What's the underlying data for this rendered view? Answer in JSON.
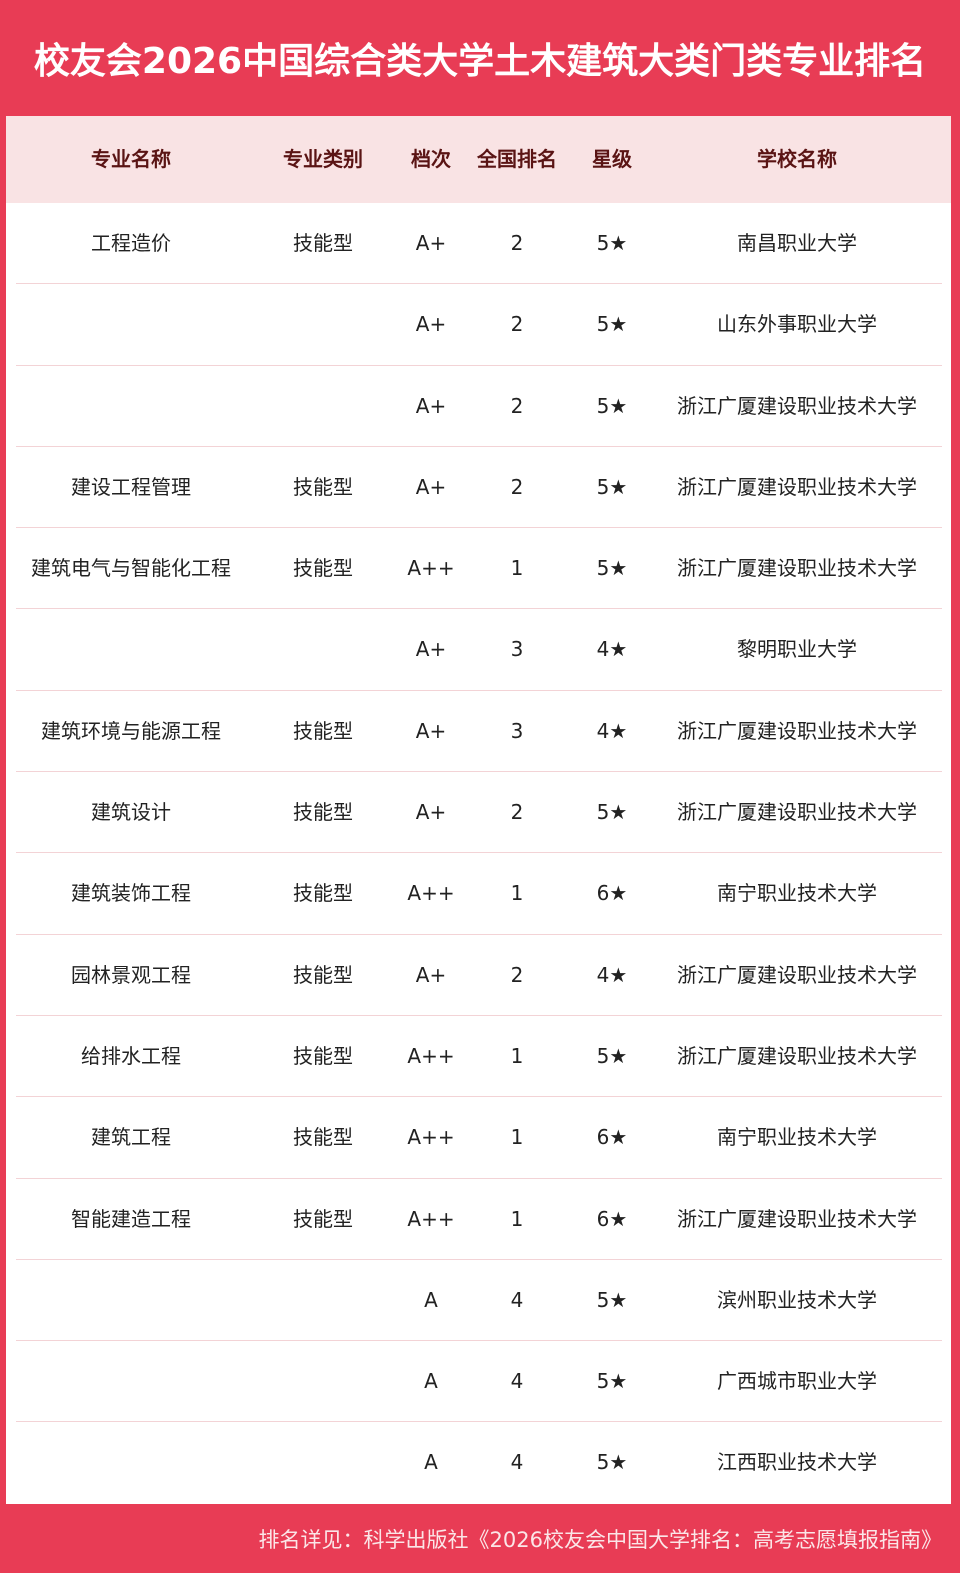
{
  "title": "校友会2026中国综合类大学土木建筑大类门类专业排名",
  "columns": [
    "专业名称",
    "专业类别",
    "档次",
    "全国排名",
    "星级",
    "学校名称"
  ],
  "rows": [
    [
      "工程造价",
      "技能型",
      "A+",
      "2",
      "5★",
      "南昌职业大学"
    ],
    [
      "",
      "",
      "A+",
      "2",
      "5★",
      "山东外事职业大学"
    ],
    [
      "",
      "",
      "A+",
      "2",
      "5★",
      "浙江广厦建设职业技术大学"
    ],
    [
      "建设工程管理",
      "技能型",
      "A+",
      "2",
      "5★",
      "浙江广厦建设职业技术大学"
    ],
    [
      "建筑电气与智能化工程",
      "技能型",
      "A++",
      "1",
      "5★",
      "浙江广厦建设职业技术大学"
    ],
    [
      "",
      "",
      "A+",
      "3",
      "4★",
      "黎明职业大学"
    ],
    [
      "建筑环境与能源工程",
      "技能型",
      "A+",
      "3",
      "4★",
      "浙江广厦建设职业技术大学"
    ],
    [
      "建筑设计",
      "技能型",
      "A+",
      "2",
      "5★",
      "浙江广厦建设职业技术大学"
    ],
    [
      "建筑装饰工程",
      "技能型",
      "A++",
      "1",
      "6★",
      "南宁职业技术大学"
    ],
    [
      "园林景观工程",
      "技能型",
      "A+",
      "2",
      "4★",
      "浙江广厦建设职业技术大学"
    ],
    [
      "给排水工程",
      "技能型",
      "A++",
      "1",
      "5★",
      "浙江广厦建设职业技术大学"
    ],
    [
      "建筑工程",
      "技能型",
      "A++",
      "1",
      "6★",
      "南宁职业技术大学"
    ],
    [
      "智能建造工程",
      "技能型",
      "A++",
      "1",
      "6★",
      "浙江广厦建设职业技术大学"
    ],
    [
      "",
      "",
      "A",
      "4",
      "5★",
      "滨州职业技术大学"
    ],
    [
      "",
      "",
      "A",
      "4",
      "5★",
      "广西城市职业大学"
    ],
    [
      "",
      "",
      "A",
      "4",
      "5★",
      "江西职业技术大学"
    ]
  ],
  "footer": "排名详见：科学出版社《2026校友会中国大学排名：高考志愿填报指南》",
  "colors": {
    "brand": "#e83c55",
    "header_bg": "#f9e3e4",
    "header_text": "#5a1414"
  }
}
